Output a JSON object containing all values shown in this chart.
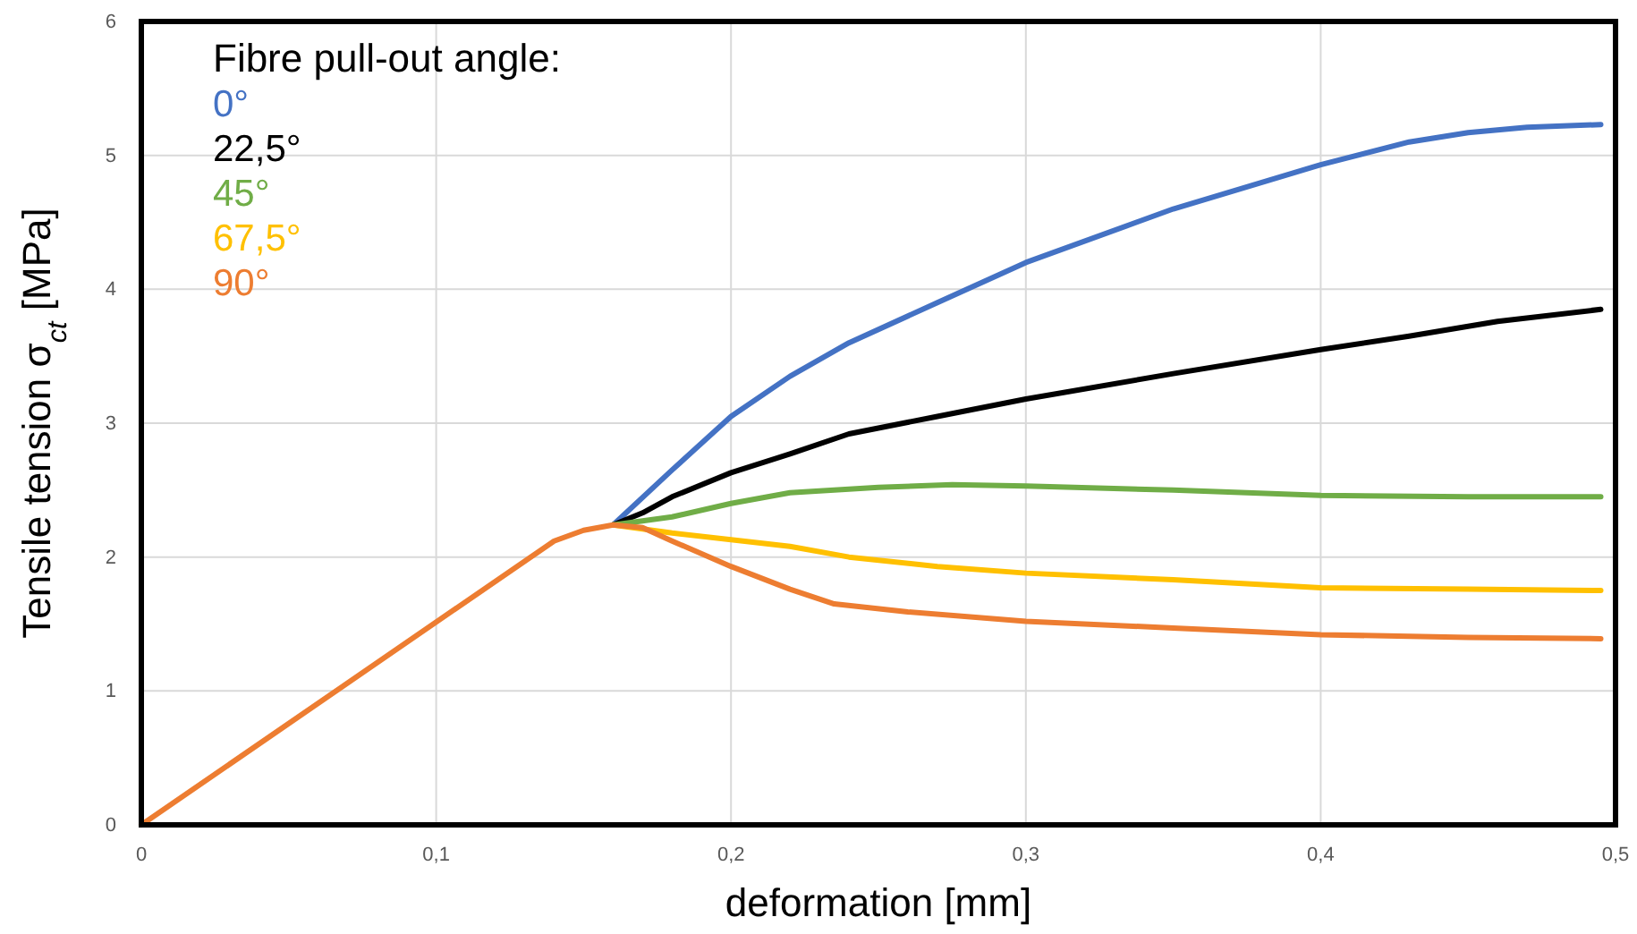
{
  "chart_data": {
    "type": "line",
    "xlabel": "deformation [mm]",
    "ylabel": "Tensile tension σ$_{ct}$ [MPa]",
    "legend_title": "Fibre pull-out angle:",
    "legend": "top left",
    "grid": true,
    "marker": "none",
    "line_style": "solid",
    "xlim": [
      0,
      0.5
    ],
    "ylim": [
      0,
      6
    ],
    "xticks": [
      {
        "value": 0,
        "label": "0"
      },
      {
        "value": 0.1,
        "label": "0,1"
      },
      {
        "value": 0.2,
        "label": "0,2"
      },
      {
        "value": 0.3,
        "label": "0,3"
      },
      {
        "value": 0.4,
        "label": "0,4"
      },
      {
        "value": 0.5,
        "label": "0,5"
      }
    ],
    "yticks": [
      0,
      1,
      2,
      3,
      4,
      5,
      6
    ],
    "series": [
      {
        "name": "0°",
        "color": "#4472c4",
        "x": [
          0.16,
          0.18,
          0.2,
          0.22,
          0.24,
          0.27,
          0.3,
          0.35,
          0.4,
          0.43,
          0.45,
          0.47,
          0.495
        ],
        "values": [
          2.24,
          2.65,
          3.05,
          3.35,
          3.6,
          3.9,
          4.2,
          4.6,
          4.93,
          5.1,
          5.17,
          5.21,
          5.23
        ]
      },
      {
        "name": "22,5°",
        "color": "#000000",
        "x": [
          0.16,
          0.17,
          0.18,
          0.2,
          0.22,
          0.24,
          0.27,
          0.3,
          0.35,
          0.4,
          0.43,
          0.46,
          0.495
        ],
        "values": [
          2.24,
          2.33,
          2.45,
          2.63,
          2.77,
          2.92,
          3.05,
          3.18,
          3.37,
          3.55,
          3.65,
          3.76,
          3.85
        ]
      },
      {
        "name": "45°",
        "color": "#70ad47",
        "x": [
          0.16,
          0.18,
          0.2,
          0.22,
          0.25,
          0.275,
          0.3,
          0.35,
          0.4,
          0.45,
          0.495
        ],
        "values": [
          2.24,
          2.3,
          2.4,
          2.48,
          2.52,
          2.54,
          2.53,
          2.5,
          2.46,
          2.45,
          2.45
        ]
      },
      {
        "name": "67,5°",
        "color": "#ffc000",
        "x": [
          0.16,
          0.18,
          0.2,
          0.22,
          0.24,
          0.27,
          0.3,
          0.35,
          0.4,
          0.45,
          0.495
        ],
        "values": [
          2.24,
          2.18,
          2.13,
          2.08,
          2.0,
          1.93,
          1.88,
          1.83,
          1.77,
          1.76,
          1.75
        ]
      },
      {
        "name": "90°",
        "color": "#ed7d31",
        "x": [
          0,
          0.14,
          0.15,
          0.16,
          0.17,
          0.18,
          0.2,
          0.22,
          0.235,
          0.26,
          0.3,
          0.35,
          0.4,
          0.45,
          0.495
        ],
        "values": [
          0,
          2.12,
          2.2,
          2.24,
          2.22,
          2.12,
          1.93,
          1.76,
          1.65,
          1.59,
          1.52,
          1.47,
          1.42,
          1.4,
          1.39
        ]
      }
    ]
  }
}
